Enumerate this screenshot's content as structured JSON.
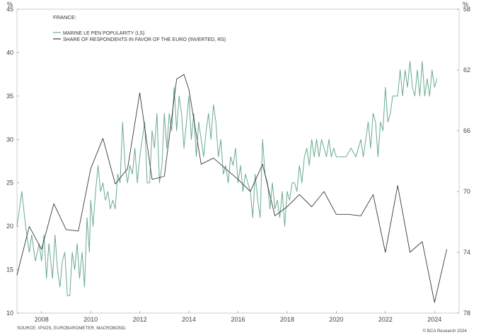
{
  "chart_data": {
    "type": "line",
    "title": "FRANCE:",
    "left_axis": {
      "unit": "%",
      "range": [
        10,
        45
      ],
      "ticks": [
        10,
        15,
        20,
        25,
        30,
        35,
        40,
        45
      ]
    },
    "right_axis": {
      "unit": "%",
      "range": [
        58,
        78
      ],
      "inverted": true,
      "ticks": [
        58,
        62,
        66,
        70,
        74,
        78
      ]
    },
    "x_axis": {
      "range": [
        2007.0,
        2025.0
      ],
      "ticks": [
        "2008",
        "2010",
        "2012",
        "2014",
        "2016",
        "2018",
        "2020",
        "2022",
        "2024"
      ]
    },
    "grid": false,
    "legend_position": "top-left",
    "series": [
      {
        "name": "MARINE LE PEN POPULARITY (LS)",
        "axis": "left",
        "color": "#6aab8e",
        "points": [
          [
            2007.0,
            20
          ],
          [
            2007.2,
            24
          ],
          [
            2007.35,
            20
          ],
          [
            2007.5,
            17
          ],
          [
            2007.6,
            19
          ],
          [
            2007.75,
            16
          ],
          [
            2007.9,
            18
          ],
          [
            2008.0,
            16
          ],
          [
            2008.1,
            19
          ],
          [
            2008.2,
            14
          ],
          [
            2008.3,
            18
          ],
          [
            2008.45,
            14
          ],
          [
            2008.55,
            19
          ],
          [
            2008.65,
            15
          ],
          [
            2008.75,
            13
          ],
          [
            2008.85,
            16
          ],
          [
            2008.95,
            17
          ],
          [
            2009.05,
            12
          ],
          [
            2009.15,
            12
          ],
          [
            2009.25,
            17
          ],
          [
            2009.35,
            15
          ],
          [
            2009.45,
            18
          ],
          [
            2009.55,
            14
          ],
          [
            2009.65,
            17
          ],
          [
            2009.75,
            13
          ],
          [
            2009.85,
            21
          ],
          [
            2009.95,
            17
          ],
          [
            2010.0,
            23
          ],
          [
            2010.1,
            20
          ],
          [
            2010.2,
            24
          ],
          [
            2010.3,
            27
          ],
          [
            2010.4,
            24
          ],
          [
            2010.5,
            25
          ],
          [
            2010.6,
            23
          ],
          [
            2010.7,
            24
          ],
          [
            2010.8,
            22
          ],
          [
            2010.9,
            23
          ],
          [
            2011.0,
            22
          ],
          [
            2011.1,
            26
          ],
          [
            2011.2,
            25
          ],
          [
            2011.3,
            32
          ],
          [
            2011.4,
            27
          ],
          [
            2011.5,
            25
          ],
          [
            2011.6,
            27
          ],
          [
            2011.7,
            26
          ],
          [
            2011.8,
            29
          ],
          [
            2011.9,
            25
          ],
          [
            2012.0,
            28
          ],
          [
            2012.1,
            30
          ],
          [
            2012.2,
            32
          ],
          [
            2012.3,
            25
          ],
          [
            2012.4,
            25
          ],
          [
            2012.5,
            31
          ],
          [
            2012.6,
            29
          ],
          [
            2012.7,
            33
          ],
          [
            2012.8,
            25
          ],
          [
            2012.9,
            27
          ],
          [
            2013.0,
            33
          ],
          [
            2013.1,
            29
          ],
          [
            2013.2,
            33
          ],
          [
            2013.3,
            31
          ],
          [
            2013.4,
            36
          ],
          [
            2013.5,
            31
          ],
          [
            2013.6,
            35
          ],
          [
            2013.7,
            33
          ],
          [
            2013.8,
            29
          ],
          [
            2013.9,
            32
          ],
          [
            2014.0,
            35
          ],
          [
            2014.1,
            30
          ],
          [
            2014.2,
            33
          ],
          [
            2014.3,
            28
          ],
          [
            2014.4,
            32
          ],
          [
            2014.5,
            30
          ],
          [
            2014.6,
            28
          ],
          [
            2014.7,
            31
          ],
          [
            2014.8,
            33
          ],
          [
            2014.9,
            30
          ],
          [
            2015.0,
            34
          ],
          [
            2015.1,
            32
          ],
          [
            2015.2,
            28
          ],
          [
            2015.3,
            30
          ],
          [
            2015.4,
            26
          ],
          [
            2015.5,
            27
          ],
          [
            2015.6,
            25
          ],
          [
            2015.7,
            28
          ],
          [
            2015.8,
            27
          ],
          [
            2015.9,
            29
          ],
          [
            2016.0,
            25
          ],
          [
            2016.1,
            27
          ],
          [
            2016.2,
            24
          ],
          [
            2016.3,
            26
          ],
          [
            2016.4,
            25
          ],
          [
            2016.5,
            24
          ],
          [
            2016.6,
            21
          ],
          [
            2016.7,
            26
          ],
          [
            2016.8,
            23
          ],
          [
            2016.9,
            21
          ],
          [
            2017.0,
            30
          ],
          [
            2017.1,
            26
          ],
          [
            2017.2,
            25
          ],
          [
            2017.3,
            22
          ],
          [
            2017.4,
            25
          ],
          [
            2017.5,
            22
          ],
          [
            2017.6,
            23
          ],
          [
            2017.7,
            21
          ],
          [
            2017.8,
            24
          ],
          [
            2017.9,
            20
          ],
          [
            2018.0,
            24
          ],
          [
            2018.1,
            23
          ],
          [
            2018.2,
            25
          ],
          [
            2018.3,
            25
          ],
          [
            2018.4,
            24
          ],
          [
            2018.5,
            27
          ],
          [
            2018.6,
            25
          ],
          [
            2018.7,
            28
          ],
          [
            2018.8,
            29
          ],
          [
            2018.9,
            27
          ],
          [
            2019.0,
            30
          ],
          [
            2019.1,
            28
          ],
          [
            2019.2,
            30
          ],
          [
            2019.3,
            28
          ],
          [
            2019.4,
            30
          ],
          [
            2019.5,
            29
          ],
          [
            2019.6,
            28
          ],
          [
            2019.7,
            30
          ],
          [
            2019.8,
            28
          ],
          [
            2019.9,
            29
          ],
          [
            2020.0,
            28
          ],
          [
            2020.2,
            28
          ],
          [
            2020.4,
            28
          ],
          [
            2020.6,
            29
          ],
          [
            2020.8,
            28
          ],
          [
            2021.0,
            30
          ],
          [
            2021.1,
            28
          ],
          [
            2021.2,
            30
          ],
          [
            2021.3,
            32
          ],
          [
            2021.4,
            29
          ],
          [
            2021.5,
            33
          ],
          [
            2021.6,
            32
          ],
          [
            2021.7,
            28
          ],
          [
            2021.8,
            32
          ],
          [
            2021.9,
            31
          ],
          [
            2022.0,
            36
          ],
          [
            2022.1,
            32
          ],
          [
            2022.2,
            33
          ],
          [
            2022.3,
            35
          ],
          [
            2022.4,
            35
          ],
          [
            2022.5,
            35
          ],
          [
            2022.6,
            38
          ],
          [
            2022.7,
            35
          ],
          [
            2022.8,
            38
          ],
          [
            2022.9,
            36
          ],
          [
            2023.0,
            39
          ],
          [
            2023.1,
            36
          ],
          [
            2023.2,
            35
          ],
          [
            2023.3,
            38
          ],
          [
            2023.4,
            35
          ],
          [
            2023.5,
            39
          ],
          [
            2023.6,
            35
          ],
          [
            2023.7,
            37
          ],
          [
            2023.8,
            35
          ],
          [
            2023.9,
            38
          ],
          [
            2024.0,
            36
          ],
          [
            2024.1,
            37
          ]
        ]
      },
      {
        "name": "SHARE OF RESPONDENTS IN FAVOR OF THE EURO (INVERTED, RS)",
        "axis": "right",
        "color": "#3a3a3a",
        "points": [
          [
            2007.0,
            75.5
          ],
          [
            2007.5,
            72.3
          ],
          [
            2008.0,
            73.8
          ],
          [
            2008.5,
            70.8
          ],
          [
            2009.0,
            72.5
          ],
          [
            2009.5,
            72.6
          ],
          [
            2010.0,
            68.5
          ],
          [
            2010.5,
            66.5
          ],
          [
            2011.0,
            69.5
          ],
          [
            2011.5,
            68.5
          ],
          [
            2012.0,
            63.5
          ],
          [
            2012.5,
            69.2
          ],
          [
            2013.0,
            69.0
          ],
          [
            2013.5,
            62.6
          ],
          [
            2013.8,
            62.3
          ],
          [
            2014.0,
            63.3
          ],
          [
            2014.5,
            68.2
          ],
          [
            2015.0,
            67.8
          ],
          [
            2015.5,
            68.5
          ],
          [
            2016.0,
            69.2
          ],
          [
            2016.5,
            70.0
          ],
          [
            2017.0,
            68.2
          ],
          [
            2017.5,
            71.6
          ],
          [
            2018.0,
            71.0
          ],
          [
            2018.5,
            70.2
          ],
          [
            2019.0,
            71.0
          ],
          [
            2019.5,
            70.0
          ],
          [
            2020.0,
            71.5
          ],
          [
            2020.5,
            71.5
          ],
          [
            2021.0,
            71.6
          ],
          [
            2021.5,
            70.2
          ],
          [
            2022.0,
            74.0
          ],
          [
            2022.5,
            69.6
          ],
          [
            2023.0,
            74.0
          ],
          [
            2023.5,
            73.3
          ],
          [
            2024.0,
            77.3
          ],
          [
            2024.5,
            73.8
          ]
        ]
      }
    ],
    "source": "SOURCE: IPSOS, EUROBAROMETER, MACROBOND.",
    "credit": "© BCA Research 2024"
  }
}
